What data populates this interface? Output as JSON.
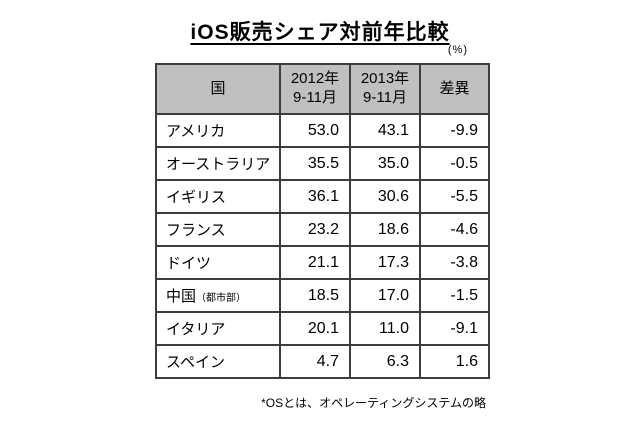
{
  "title": "iOS販売シェア対前年比較",
  "unit_label": "(%)",
  "footnote": "*OSとは、オペレーティングシステムの略",
  "colors": {
    "header_bg": "#c0c0c0",
    "border": "#3d3d3d",
    "text": "#000000",
    "background": "#ffffff"
  },
  "table": {
    "headers": [
      "国",
      "2012年\n9-11月",
      "2013年\n9-11月",
      "差異"
    ],
    "rows": [
      {
        "country": "アメリカ",
        "country_note": "",
        "v2012": "53.0",
        "v2013": "43.1",
        "diff": "-9.9"
      },
      {
        "country": "オーストラリア",
        "country_note": "",
        "v2012": "35.5",
        "v2013": "35.0",
        "diff": "-0.5"
      },
      {
        "country": "イギリス",
        "country_note": "",
        "v2012": "36.1",
        "v2013": "30.6",
        "diff": "-5.5"
      },
      {
        "country": "フランス",
        "country_note": "",
        "v2012": "23.2",
        "v2013": "18.6",
        "diff": "-4.6"
      },
      {
        "country": "ドイツ",
        "country_note": "",
        "v2012": "21.1",
        "v2013": "17.3",
        "diff": "-3.8"
      },
      {
        "country": "中国",
        "country_note": "（都市部）",
        "v2012": "18.5",
        "v2013": "17.0",
        "diff": "-1.5"
      },
      {
        "country": "イタリア",
        "country_note": "",
        "v2012": "20.1",
        "v2013": "11.0",
        "diff": "-9.1"
      },
      {
        "country": "スペイン",
        "country_note": "",
        "v2012": "4.7",
        "v2013": "6.3",
        "diff": "1.6"
      }
    ]
  },
  "chart_data": {
    "type": "table",
    "title": "iOS販売シェア対前年比較",
    "unit": "%",
    "columns": [
      "国",
      "2012年9-11月",
      "2013年9-11月",
      "差異"
    ],
    "rows": [
      [
        "アメリカ",
        53.0,
        43.1,
        -9.9
      ],
      [
        "オーストラリア",
        35.5,
        35.0,
        -0.5
      ],
      [
        "イギリス",
        36.1,
        30.6,
        -5.5
      ],
      [
        "フランス",
        23.2,
        18.6,
        -4.6
      ],
      [
        "ドイツ",
        21.1,
        17.3,
        -3.8
      ],
      [
        "中国（都市部）",
        18.5,
        17.0,
        -1.5
      ],
      [
        "イタリア",
        20.1,
        11.0,
        -9.1
      ],
      [
        "スペイン",
        4.7,
        6.3,
        1.6
      ]
    ],
    "footnote": "*OSとは、オペレーティングシステムの略"
  }
}
